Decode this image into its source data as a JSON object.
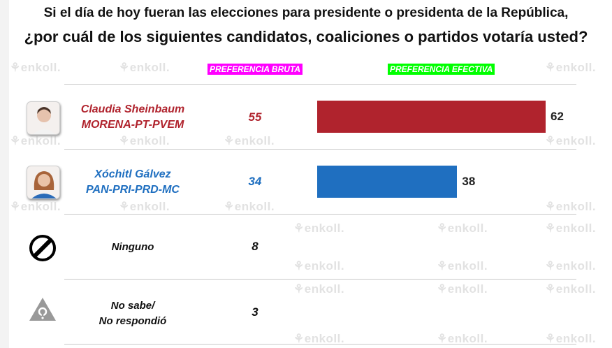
{
  "title_line1": "Si el día de hoy fueran las elecciones para presidente o presidenta de la República,",
  "title_line2": "¿por cuál de los siguientes candidatos, coaliciones o partidos votaría usted?",
  "watermark": "enkoll.",
  "chart_data": {
    "type": "bar",
    "headers": {
      "bruta": "PREFERENCIA BRUTA",
      "efectiva": "PREFERENCIA EFECTIVA"
    },
    "header_colors": {
      "bruta": "#ff00ff",
      "efectiva": "#00ff00"
    },
    "rows": [
      {
        "name": "Claudia Sheinbaum",
        "party": "MORENA-PT-PVEM",
        "bruta": 55,
        "efectiva": 62,
        "color": "#b0232d",
        "icon": "candidate-photo"
      },
      {
        "name": "Xóchitl Gálvez",
        "party": "PAN-PRI-PRD-MC",
        "bruta": 34,
        "efectiva": 38,
        "color": "#1f6fc0",
        "icon": "candidate-photo"
      },
      {
        "name": "Ninguno",
        "party": "",
        "bruta": 8,
        "efectiva": null,
        "color": "#111111",
        "icon": "prohibited-icon"
      },
      {
        "name": "No sabe/",
        "party": "No respondió",
        "bruta": 3,
        "efectiva": null,
        "color": "#111111",
        "icon": "question-triangle-icon"
      }
    ],
    "xlim": [
      0,
      100
    ]
  }
}
